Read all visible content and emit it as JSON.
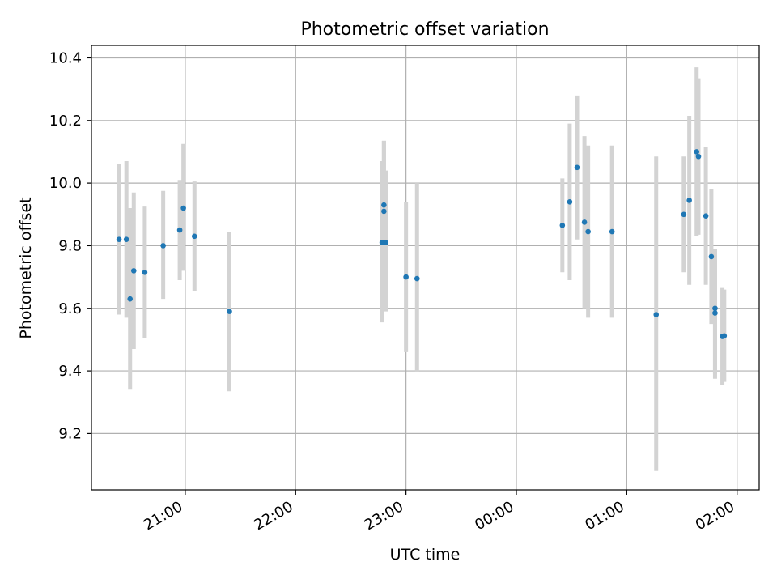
{
  "chart_data": {
    "type": "scatter",
    "title": "Photometric offset variation",
    "xlabel": "UTC time",
    "ylabel": "Photometric offset",
    "grid": true,
    "x_range": [
      "20:09",
      "02:12"
    ],
    "y_range": [
      9.02,
      10.44
    ],
    "x_ticks": [
      "21:00",
      "22:00",
      "23:00",
      "00:00",
      "01:00",
      "02:00"
    ],
    "y_ticks": [
      "9.2",
      "9.4",
      "9.6",
      "9.8",
      "10.0",
      "10.2",
      "10.4"
    ],
    "marker_color": "#1f77b4",
    "errorbar_color": "#d3d3d3",
    "series": [
      {
        "points": [
          {
            "time": "20:24",
            "value": 9.82,
            "err_low": 9.58,
            "err_high": 10.06
          },
          {
            "time": "20:28",
            "value": 9.82,
            "err_low": 9.57,
            "err_high": 10.07
          },
          {
            "time": "20:30",
            "value": 9.63,
            "err_low": 9.34,
            "err_high": 9.92
          },
          {
            "time": "20:32",
            "value": 9.72,
            "err_low": 9.47,
            "err_high": 9.97
          },
          {
            "time": "20:38",
            "value": 9.715,
            "err_low": 9.505,
            "err_high": 9.925
          },
          {
            "time": "20:48",
            "value": 9.8,
            "err_low": 9.63,
            "err_high": 9.975
          },
          {
            "time": "20:57",
            "value": 9.85,
            "err_low": 9.69,
            "err_high": 10.01
          },
          {
            "time": "20:59",
            "value": 9.92,
            "err_low": 9.72,
            "err_high": 10.125
          },
          {
            "time": "21:05",
            "value": 9.83,
            "err_low": 9.655,
            "err_high": 10.005
          },
          {
            "time": "21:24",
            "value": 9.59,
            "err_low": 9.335,
            "err_high": 9.845
          },
          {
            "time": "22:47",
            "value": 9.81,
            "err_low": 9.555,
            "err_high": 10.07
          },
          {
            "time": "22:48",
            "value": 9.93,
            "err_low": 9.685,
            "err_high": 10.135
          },
          {
            "time": "22:48",
            "value": 9.91,
            "err_low": 9.73,
            "err_high": 10.135
          },
          {
            "time": "22:49",
            "value": 9.81,
            "err_low": 9.59,
            "err_high": 10.04
          },
          {
            "time": "23:00",
            "value": 9.7,
            "err_low": 9.46,
            "err_high": 9.94
          },
          {
            "time": "23:06",
            "value": 9.695,
            "err_low": 9.395,
            "err_high": 10.0
          },
          {
            "time": "00:25",
            "value": 9.865,
            "err_low": 9.715,
            "err_high": 10.015
          },
          {
            "time": "00:29",
            "value": 9.94,
            "err_low": 9.69,
            "err_high": 10.19
          },
          {
            "time": "00:33",
            "value": 10.05,
            "err_low": 9.82,
            "err_high": 10.28
          },
          {
            "time": "00:37",
            "value": 9.875,
            "err_low": 9.6,
            "err_high": 10.15
          },
          {
            "time": "00:39",
            "value": 9.845,
            "err_low": 9.57,
            "err_high": 10.12
          },
          {
            "time": "00:52",
            "value": 9.845,
            "err_low": 9.57,
            "err_high": 10.12
          },
          {
            "time": "01:16",
            "value": 9.58,
            "err_low": 9.08,
            "err_high": 10.085
          },
          {
            "time": "01:31",
            "value": 9.9,
            "err_low": 9.715,
            "err_high": 10.085
          },
          {
            "time": "01:34",
            "value": 9.945,
            "err_low": 9.675,
            "err_high": 10.215
          },
          {
            "time": "01:38",
            "value": 10.1,
            "err_low": 9.83,
            "err_high": 10.37
          },
          {
            "time": "01:39",
            "value": 10.085,
            "err_low": 9.835,
            "err_high": 10.335
          },
          {
            "time": "01:43",
            "value": 9.895,
            "err_low": 9.675,
            "err_high": 10.115
          },
          {
            "time": "01:46",
            "value": 9.765,
            "err_low": 9.55,
            "err_high": 9.98
          },
          {
            "time": "01:48",
            "value": 9.6,
            "err_low": 9.375,
            "err_high": 9.79
          },
          {
            "time": "01:48",
            "value": 9.585,
            "err_low": 9.39,
            "err_high": 9.79
          },
          {
            "time": "01:52",
            "value": 9.51,
            "err_low": 9.355,
            "err_high": 9.665
          },
          {
            "time": "01:53",
            "value": 9.512,
            "err_low": 9.365,
            "err_high": 9.66
          }
        ]
      }
    ]
  }
}
